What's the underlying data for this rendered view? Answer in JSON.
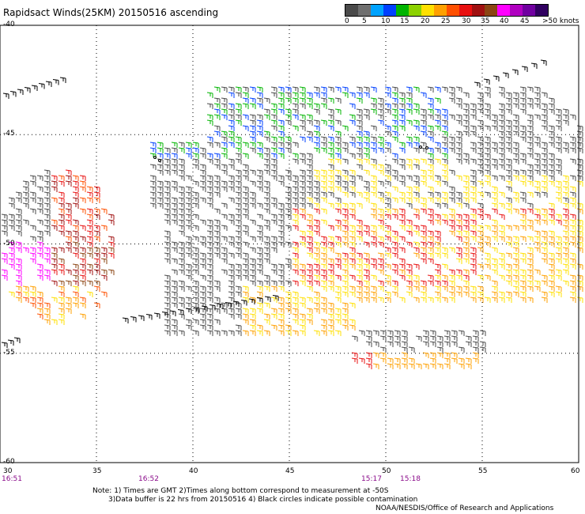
{
  "title": "Rapidsact Winds(25KM) 20150516 ascending",
  "legend": {
    "colors": [
      "#4a4a4a",
      "#6f6f6f",
      "#00a3ff",
      "#0040ff",
      "#00b400",
      "#8cd200",
      "#ffe000",
      "#ffa000",
      "#ff5000",
      "#e81010",
      "#a01010",
      "#8b4513",
      "#ff00ff",
      "#b000c0",
      "#7000a0",
      "#300060"
    ],
    "labels": [
      "0",
      "5",
      "10",
      "15",
      "20",
      "25",
      "30",
      "35",
      "40",
      "45",
      ">50 knots"
    ]
  },
  "axes": {
    "y_labels": [
      "-40",
      "-45",
      "-50",
      "-55",
      "-60"
    ],
    "x_labels": [
      "30",
      "35",
      "40",
      "45",
      "50",
      "55",
      "60"
    ]
  },
  "times": [
    "16:51",
    "16:52",
    "15:17",
    "15:18"
  ],
  "notes": "Note: 1) Times are GMT 2)Times along bottom correspond to measurement at -50S\n       3)Data buffer is 22 hrs from 20150516 4) Black circles indicate possible contamination",
  "credit": "NOAA/NESDIS/Office of Research and Applications",
  "map": {
    "lon_range": [
      30,
      60
    ],
    "lat_range": [
      -60,
      -40
    ],
    "grid": "dotted",
    "wind_barbs": "windsat-ascending-swaths"
  }
}
